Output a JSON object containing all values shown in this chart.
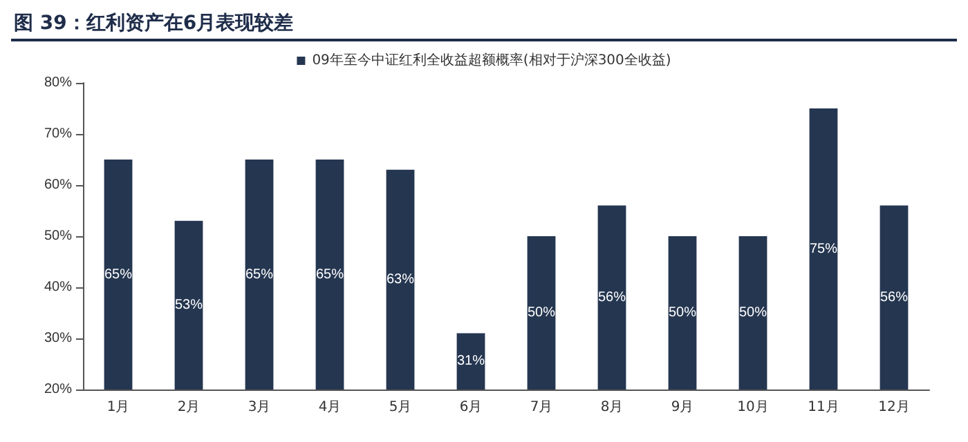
{
  "chart_data": {
    "type": "bar",
    "title": "图 39：红利资产在6月表现较差",
    "categories": [
      "1月",
      "2月",
      "3月",
      "4月",
      "5月",
      "6月",
      "7月",
      "8月",
      "9月",
      "10月",
      "11月",
      "12月"
    ],
    "series": [
      {
        "name": "09年至今中证红利全收益超额概率(相对于沪深300全收益)",
        "color": "#253650",
        "values": [
          65,
          53,
          65,
          65,
          63,
          31,
          50,
          56,
          50,
          50,
          75,
          56
        ],
        "value_labels": [
          "65%",
          "53%",
          "65%",
          "65%",
          "63%",
          "31%",
          "50%",
          "56%",
          "50%",
          "50%",
          "75%",
          "56%"
        ]
      }
    ],
    "ylim": [
      20,
      80
    ],
    "yticks": [
      {
        "value": 20,
        "label": "20%"
      },
      {
        "value": 30,
        "label": "30%"
      },
      {
        "value": 40,
        "label": "40%"
      },
      {
        "value": 50,
        "label": "50%"
      },
      {
        "value": 60,
        "label": "60%"
      },
      {
        "value": 70,
        "label": "70%"
      },
      {
        "value": 80,
        "label": "80%"
      }
    ],
    "grid": false,
    "legend": "top"
  }
}
